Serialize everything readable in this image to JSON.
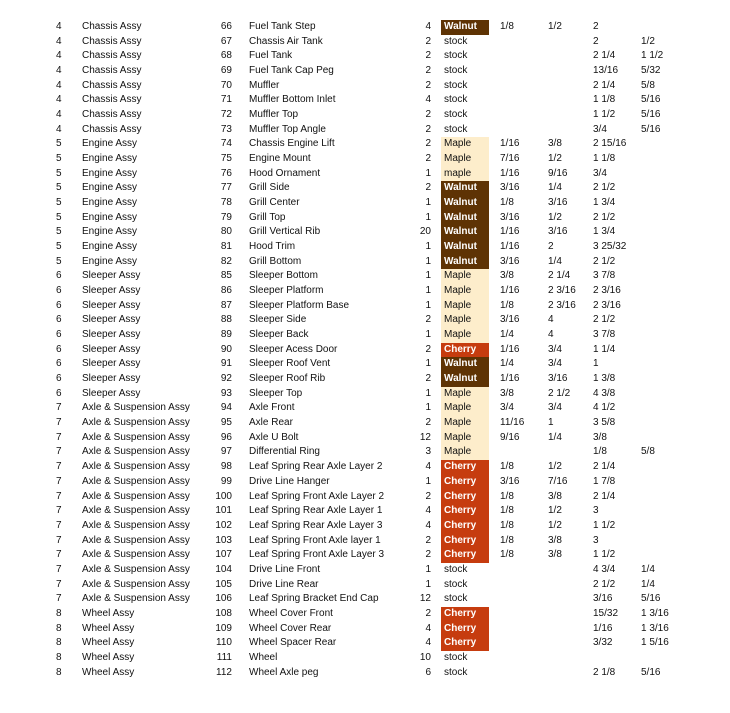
{
  "colors": {
    "walnut": "#5e3304",
    "cherry": "#c63c0f",
    "maple": "#fdedcb"
  },
  "rows": [
    [
      "4",
      "Chassis Assy",
      "66",
      "Fuel Tank Step",
      "4",
      "Walnut",
      "1/8",
      "1/2",
      "2",
      ""
    ],
    [
      "4",
      "Chassis Assy",
      "67",
      "Chassis Air Tank",
      "2",
      "stock",
      "",
      "",
      "2",
      "1/2"
    ],
    [
      "4",
      "Chassis Assy",
      "68",
      "Fuel Tank",
      "2",
      "stock",
      "",
      "",
      "2 1/4",
      "1 1/2"
    ],
    [
      "4",
      "Chassis Assy",
      "69",
      "Fuel Tank Cap Peg",
      "2",
      "stock",
      "",
      "",
      "13/16",
      "5/32"
    ],
    [
      "4",
      "Chassis Assy",
      "70",
      "Muffler",
      "2",
      "stock",
      "",
      "",
      "2 1/4",
      "5/8"
    ],
    [
      "4",
      "Chassis Assy",
      "71",
      "Muffler Bottom Inlet",
      "4",
      "stock",
      "",
      "",
      "1 1/8",
      "5/16"
    ],
    [
      "4",
      "Chassis Assy",
      "72",
      "Muffler Top",
      "2",
      "stock",
      "",
      "",
      "1 1/2",
      "5/16"
    ],
    [
      "4",
      "Chassis Assy",
      "73",
      "Muffler Top Angle",
      "2",
      "stock",
      "",
      "",
      "3/4",
      "5/16"
    ],
    [
      "5",
      "Engine Assy",
      "74",
      "Chassis Engine Lift",
      "2",
      "Maple",
      "1/16",
      "3/8",
      "2 15/16",
      ""
    ],
    [
      "5",
      "Engine Assy",
      "75",
      "Engine Mount",
      "2",
      "Maple",
      "7/16",
      "1/2",
      "1 1/8",
      ""
    ],
    [
      "5",
      "Engine Assy",
      "76",
      "Hood Ornament",
      "1",
      "maple",
      "1/16",
      "9/16",
      "3/4",
      ""
    ],
    [
      "5",
      "Engine Assy",
      "77",
      "Grill Side",
      "2",
      "Walnut",
      "3/16",
      "1/4",
      "2 1/2",
      ""
    ],
    [
      "5",
      "Engine Assy",
      "78",
      "Grill Center",
      "1",
      "Walnut",
      "1/8",
      "3/16",
      "1 3/4",
      ""
    ],
    [
      "5",
      "Engine Assy",
      "79",
      "Grill Top",
      "1",
      "Walnut",
      "3/16",
      "1/2",
      "2 1/2",
      ""
    ],
    [
      "5",
      "Engine Assy",
      "80",
      "Grill Vertical Rib",
      "20",
      "Walnut",
      "1/16",
      "3/16",
      "1 3/4",
      ""
    ],
    [
      "5",
      "Engine Assy",
      "81",
      "Hood Trim",
      "1",
      "Walnut",
      "1/16",
      "2",
      "3 25/32",
      ""
    ],
    [
      "5",
      "Engine Assy",
      "82",
      "Grill Bottom",
      "1",
      "Walnut",
      "3/16",
      "1/4",
      "2 1/2",
      ""
    ],
    [
      "6",
      "Sleeper Assy",
      "85",
      "Sleeper Bottom",
      "1",
      "Maple",
      "3/8",
      "2 1/4",
      "3 7/8",
      ""
    ],
    [
      "6",
      "Sleeper Assy",
      "86",
      "Sleeper Platform",
      "1",
      "Maple",
      "1/16",
      "2 3/16",
      "2 3/16",
      ""
    ],
    [
      "6",
      "Sleeper Assy",
      "87",
      "Sleeper Platform Base",
      "1",
      "Maple",
      "1/8",
      "2 3/16",
      "2 3/16",
      ""
    ],
    [
      "6",
      "Sleeper Assy",
      "88",
      "Sleeper Side",
      "2",
      "Maple",
      "3/16",
      "4",
      "2 1/2",
      ""
    ],
    [
      "6",
      "Sleeper Assy",
      "89",
      "Sleeper Back",
      "1",
      "Maple",
      "1/4",
      "4",
      "3 7/8",
      ""
    ],
    [
      "6",
      "Sleeper Assy",
      "90",
      "Sleeper Acess Door",
      "2",
      "Cherry",
      "1/16",
      "3/4",
      "1 1/4",
      ""
    ],
    [
      "6",
      "Sleeper Assy",
      "91",
      "Sleeper Roof Vent",
      "1",
      "Walnut",
      "1/4",
      "3/4",
      "1",
      ""
    ],
    [
      "6",
      "Sleeper Assy",
      "92",
      "Sleeper Roof Rib",
      "2",
      "Walnut",
      "1/16",
      "3/16",
      "1 3/8",
      ""
    ],
    [
      "6",
      "Sleeper Assy",
      "93",
      "Sleeper Top",
      "1",
      "Maple",
      "3/8",
      "2 1/2",
      "4 3/8",
      ""
    ],
    [
      "7",
      "Axle & Suspension Assy",
      "94",
      "Axle Front",
      "1",
      "Maple",
      "3/4",
      "3/4",
      "4 1/2",
      ""
    ],
    [
      "7",
      "Axle & Suspension Assy",
      "95",
      "Axle Rear",
      "2",
      "Maple",
      "11/16",
      "1",
      "3 5/8",
      ""
    ],
    [
      "7",
      "Axle & Suspension Assy",
      "96",
      "Axle U Bolt",
      "12",
      "Maple",
      "9/16",
      "1/4",
      "3/8",
      ""
    ],
    [
      "7",
      "Axle & Suspension Assy",
      "97",
      "Differential Ring",
      "3",
      "Maple",
      "",
      "",
      "1/8",
      "5/8"
    ],
    [
      "7",
      "Axle & Suspension Assy",
      "98",
      "Leaf Spring Rear Axle Layer 2",
      "4",
      "Cherry",
      "1/8",
      "1/2",
      "2 1/4",
      ""
    ],
    [
      "7",
      "Axle & Suspension Assy",
      "99",
      "Drive Line Hanger",
      "1",
      "Cherry",
      "3/16",
      "7/16",
      "1 7/8",
      ""
    ],
    [
      "7",
      "Axle & Suspension Assy",
      "100",
      "Leaf Spring Front Axle Layer 2",
      "2",
      "Cherry",
      "1/8",
      "3/8",
      "2 1/4",
      ""
    ],
    [
      "7",
      "Axle & Suspension Assy",
      "101",
      "Leaf Spring Rear Axle Layer 1",
      "4",
      "Cherry",
      "1/8",
      "1/2",
      "3",
      ""
    ],
    [
      "7",
      "Axle & Suspension Assy",
      "102",
      "Leaf Spring Rear Axle Layer 3",
      "4",
      "Cherry",
      "1/8",
      "1/2",
      "1 1/2",
      ""
    ],
    [
      "7",
      "Axle & Suspension Assy",
      "103",
      "Leaf Spring Front Axle layer 1",
      "2",
      "Cherry",
      "1/8",
      "3/8",
      "3",
      ""
    ],
    [
      "7",
      "Axle & Suspension Assy",
      "107",
      "Leaf Spring Front Axle Layer 3",
      "2",
      "Cherry",
      "1/8",
      "3/8",
      "1 1/2",
      ""
    ],
    [
      "7",
      "Axle & Suspension Assy",
      "104",
      "Drive Line Front",
      "1",
      "stock",
      "",
      "",
      "4 3/4",
      "1/4"
    ],
    [
      "7",
      "Axle & Suspension Assy",
      "105",
      "Drive Line Rear",
      "1",
      "stock",
      "",
      "",
      "2 1/2",
      "1/4"
    ],
    [
      "7",
      "Axle & Suspension Assy",
      "106",
      "Leaf Spring Bracket End Cap",
      "12",
      "stock",
      "",
      "",
      "3/16",
      "5/16"
    ],
    [
      "8",
      "Wheel Assy",
      "108",
      "Wheel Cover Front",
      "2",
      "Cherry",
      "",
      "",
      "15/32",
      "1 3/16"
    ],
    [
      "8",
      "Wheel Assy",
      "109",
      "Wheel Cover Rear",
      "4",
      "Cherry",
      "",
      "",
      "1/16",
      "1 3/16"
    ],
    [
      "8",
      "Wheel Assy",
      "110",
      "Wheel Spacer Rear",
      "4",
      "Cherry",
      "",
      "",
      "3/32",
      "1 5/16"
    ],
    [
      "8",
      "Wheel Assy",
      "111",
      "Wheel",
      "10",
      "stock",
      "",
      "",
      "",
      ""
    ],
    [
      "8",
      "Wheel Assy",
      "112",
      "Wheel Axle peg",
      "6",
      "stock",
      "",
      "",
      "2 1/8",
      "5/16"
    ]
  ]
}
